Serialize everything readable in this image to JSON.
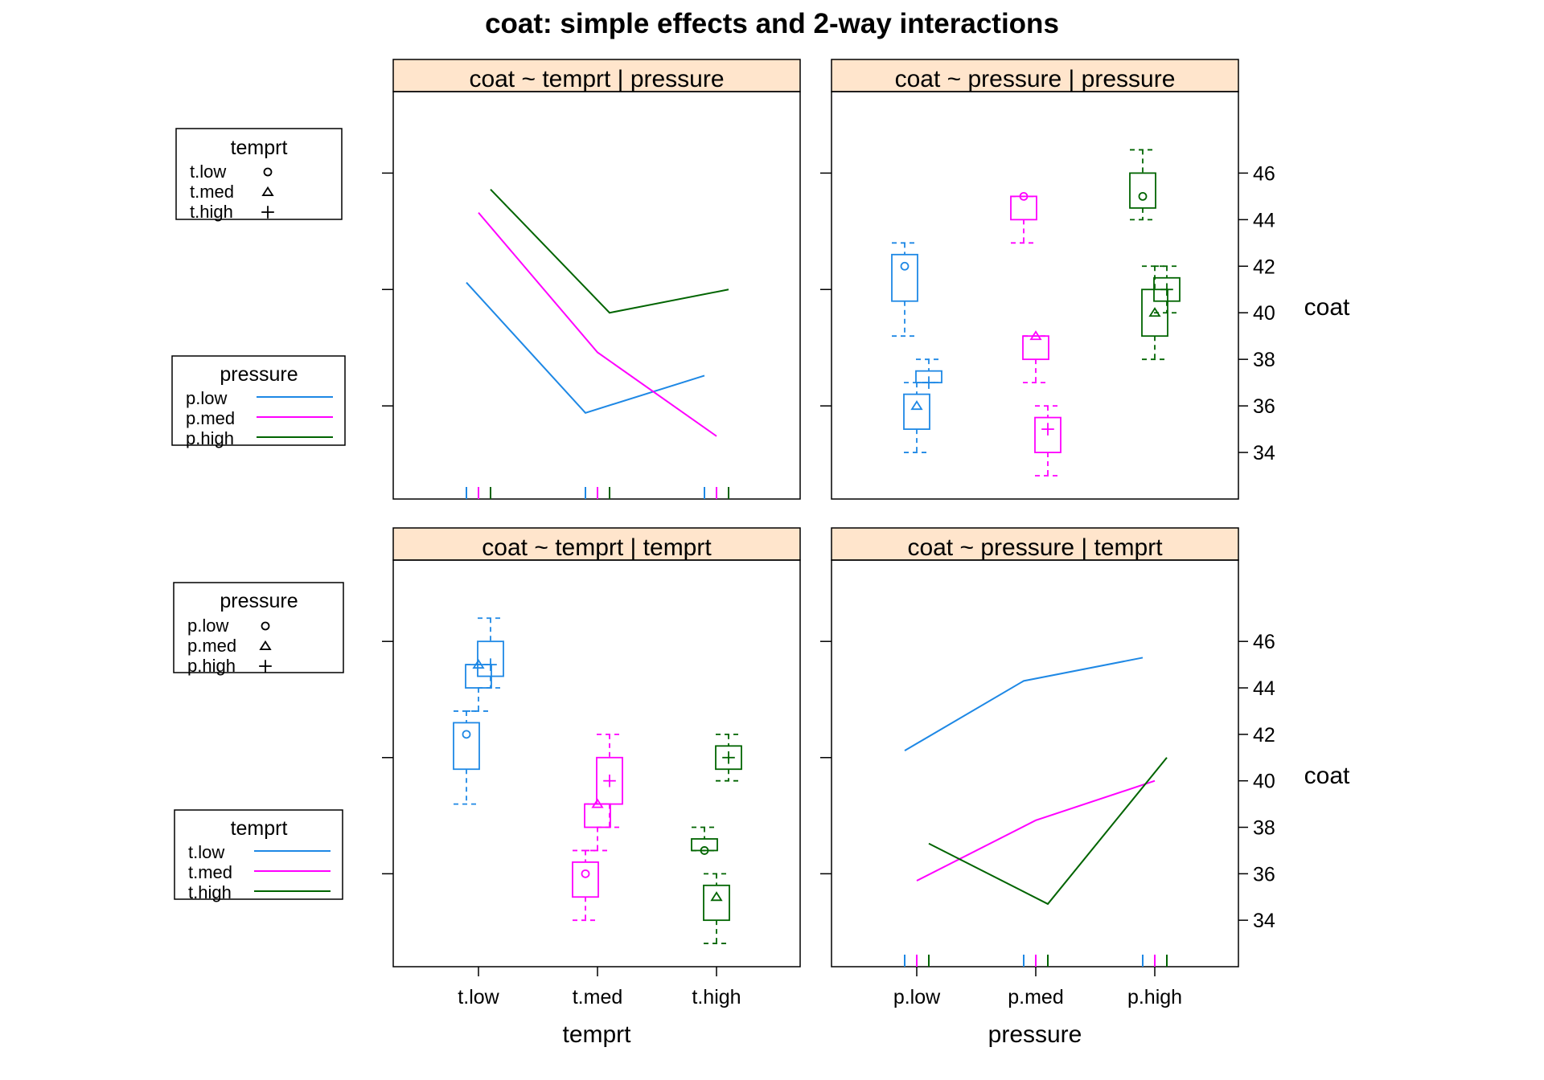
{
  "title": "coat: simple effects and 2-way interactions",
  "colors": {
    "low": "#1e88e5",
    "med": "#ff00ff",
    "high": "#006400",
    "strip": "#ffe5cc"
  },
  "chart_data": [
    {
      "type": "line",
      "strip": "coat ~ temprt | pressure",
      "x": [
        "t.low",
        "t.med",
        "t.high"
      ],
      "series": [
        {
          "name": "p.low",
          "values": [
            41.3,
            35.7,
            37.3
          ]
        },
        {
          "name": "p.med",
          "values": [
            44.3,
            38.3,
            34.7
          ]
        },
        {
          "name": "p.high",
          "values": [
            45.3,
            40.0,
            41.0
          ]
        }
      ],
      "ylim": [
        32,
        49.5
      ]
    },
    {
      "type": "box",
      "strip": "coat ~ pressure | pressure",
      "categories": [
        "p.low",
        "p.med",
        "p.high"
      ],
      "groups": [
        {
          "name": "t.low",
          "boxes": [
            {
              "min": 39,
              "q1": 40.5,
              "median": 42.5,
              "q3": 42.5,
              "max": 43,
              "mean": 42
            },
            {
              "min": 43,
              "q1": 44,
              "median": 45,
              "q3": 45,
              "max": 45,
              "mean": 45
            },
            {
              "min": 44,
              "q1": 44.5,
              "median": 46,
              "q3": 46,
              "max": 47,
              "mean": 45
            }
          ]
        },
        {
          "name": "t.med",
          "boxes": [
            {
              "min": 34,
              "q1": 35,
              "median": 36.5,
              "q3": 36.5,
              "max": 37,
              "mean": 36
            },
            {
              "min": 37,
              "q1": 38,
              "median": 39,
              "q3": 39,
              "max": 39,
              "mean": 39
            },
            {
              "min": 38,
              "q1": 39,
              "median": 41,
              "q3": 41,
              "max": 42,
              "mean": 40
            }
          ]
        },
        {
          "name": "t.high",
          "boxes": [
            {
              "min": 37,
              "q1": 37,
              "median": 37.5,
              "q3": 37.5,
              "max": 38,
              "mean": 37
            },
            {
              "min": 33,
              "q1": 34,
              "median": 35.5,
              "q3": 35.5,
              "max": 36,
              "mean": 35
            },
            {
              "min": 40,
              "q1": 40.5,
              "median": 41.5,
              "q3": 41.5,
              "max": 42,
              "mean": 41
            }
          ]
        }
      ],
      "yticks": [
        34,
        36,
        38,
        40,
        42,
        44,
        46
      ],
      "ylabel": "coat",
      "ylim": [
        32,
        49.5
      ]
    },
    {
      "type": "box",
      "strip": "coat ~ temprt | temprt",
      "categories": [
        "t.low",
        "t.med",
        "t.high"
      ],
      "groups": [
        {
          "name": "p.low",
          "boxes": [
            {
              "min": 39,
              "q1": 40.5,
              "median": 42.5,
              "q3": 42.5,
              "max": 43,
              "mean": 42
            },
            {
              "min": 34,
              "q1": 35,
              "median": 36.5,
              "q3": 36.5,
              "max": 37,
              "mean": 36
            },
            {
              "min": 37,
              "q1": 37,
              "median": 37.5,
              "q3": 37.5,
              "max": 38,
              "mean": 37
            }
          ]
        },
        {
          "name": "p.med",
          "boxes": [
            {
              "min": 43,
              "q1": 44,
              "median": 45,
              "q3": 45,
              "max": 45,
              "mean": 45
            },
            {
              "min": 37,
              "q1": 38,
              "median": 39,
              "q3": 39,
              "max": 39,
              "mean": 39
            },
            {
              "min": 33,
              "q1": 34,
              "median": 35.5,
              "q3": 35.5,
              "max": 36,
              "mean": 35
            }
          ]
        },
        {
          "name": "p.high",
          "boxes": [
            {
              "min": 44,
              "q1": 44.5,
              "median": 46,
              "q3": 46,
              "max": 47,
              "mean": 45
            },
            {
              "min": 38,
              "q1": 39,
              "median": 41,
              "q3": 41,
              "max": 42,
              "mean": 40
            },
            {
              "min": 40,
              "q1": 40.5,
              "median": 41.5,
              "q3": 41.5,
              "max": 42,
              "mean": 41
            }
          ]
        }
      ],
      "xlabel": "temprt",
      "ylim": [
        32,
        49.5
      ]
    },
    {
      "type": "line",
      "strip": "coat ~ pressure | temprt",
      "x": [
        "p.low",
        "p.med",
        "p.high"
      ],
      "series": [
        {
          "name": "t.low",
          "values": [
            41.3,
            44.3,
            45.3
          ]
        },
        {
          "name": "t.med",
          "values": [
            35.7,
            38.3,
            40.0
          ]
        },
        {
          "name": "t.high",
          "values": [
            37.3,
            34.7,
            41.0
          ]
        }
      ],
      "yticks": [
        34,
        36,
        38,
        40,
        42,
        44,
        46
      ],
      "xlabel": "pressure",
      "ylabel": "coat",
      "ylim": [
        32,
        49.5
      ]
    }
  ],
  "legends": {
    "top_symbols": {
      "title": "temprt",
      "items": [
        "t.low",
        "t.med",
        "t.high"
      ]
    },
    "top_lines": {
      "title": "pressure",
      "items": [
        "p.low",
        "p.med",
        "p.high"
      ]
    },
    "bottom_symbols": {
      "title": "pressure",
      "items": [
        "p.low",
        "p.med",
        "p.high"
      ]
    },
    "bottom_lines": {
      "title": "temprt",
      "items": [
        "t.low",
        "t.med",
        "t.high"
      ]
    }
  }
}
